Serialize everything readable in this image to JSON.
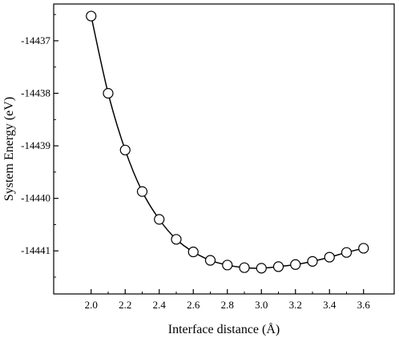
{
  "chart_data": {
    "type": "line",
    "xlabel": "Interface distance (Å)",
    "ylabel": "System Energy (eV)",
    "xlim": [
      1.78,
      3.78
    ],
    "ylim": [
      -14441.82,
      -14436.3
    ],
    "x_ticks": [
      2.0,
      2.2,
      2.4,
      2.6,
      2.8,
      3.0,
      3.2,
      3.4,
      3.6
    ],
    "x_tick_labels": [
      "2.0",
      "2.2",
      "2.4",
      "2.6",
      "2.8",
      "3.0",
      "3.2",
      "3.4",
      "3.6"
    ],
    "y_ticks": [
      -14437,
      -14438,
      -14439,
      -14440,
      -14441
    ],
    "y_tick_labels": [
      "-14437",
      "-14438",
      "-14439",
      "-14440",
      "-14441"
    ],
    "grid": false,
    "marker": "open-circle",
    "series": [
      {
        "x": [
          2.0,
          2.1,
          2.2,
          2.3,
          2.4,
          2.5,
          2.6,
          2.7,
          2.8,
          2.9,
          3.0,
          3.1,
          3.2,
          3.3,
          3.4,
          3.5,
          3.6
        ],
        "y": [
          -14436.53,
          -14438.0,
          -14439.08,
          -14439.87,
          -14440.4,
          -14440.78,
          -14441.02,
          -14441.18,
          -14441.27,
          -14441.32,
          -14441.33,
          -14441.3,
          -14441.26,
          -14441.2,
          -14441.12,
          -14441.03,
          -14440.95
        ]
      }
    ]
  }
}
